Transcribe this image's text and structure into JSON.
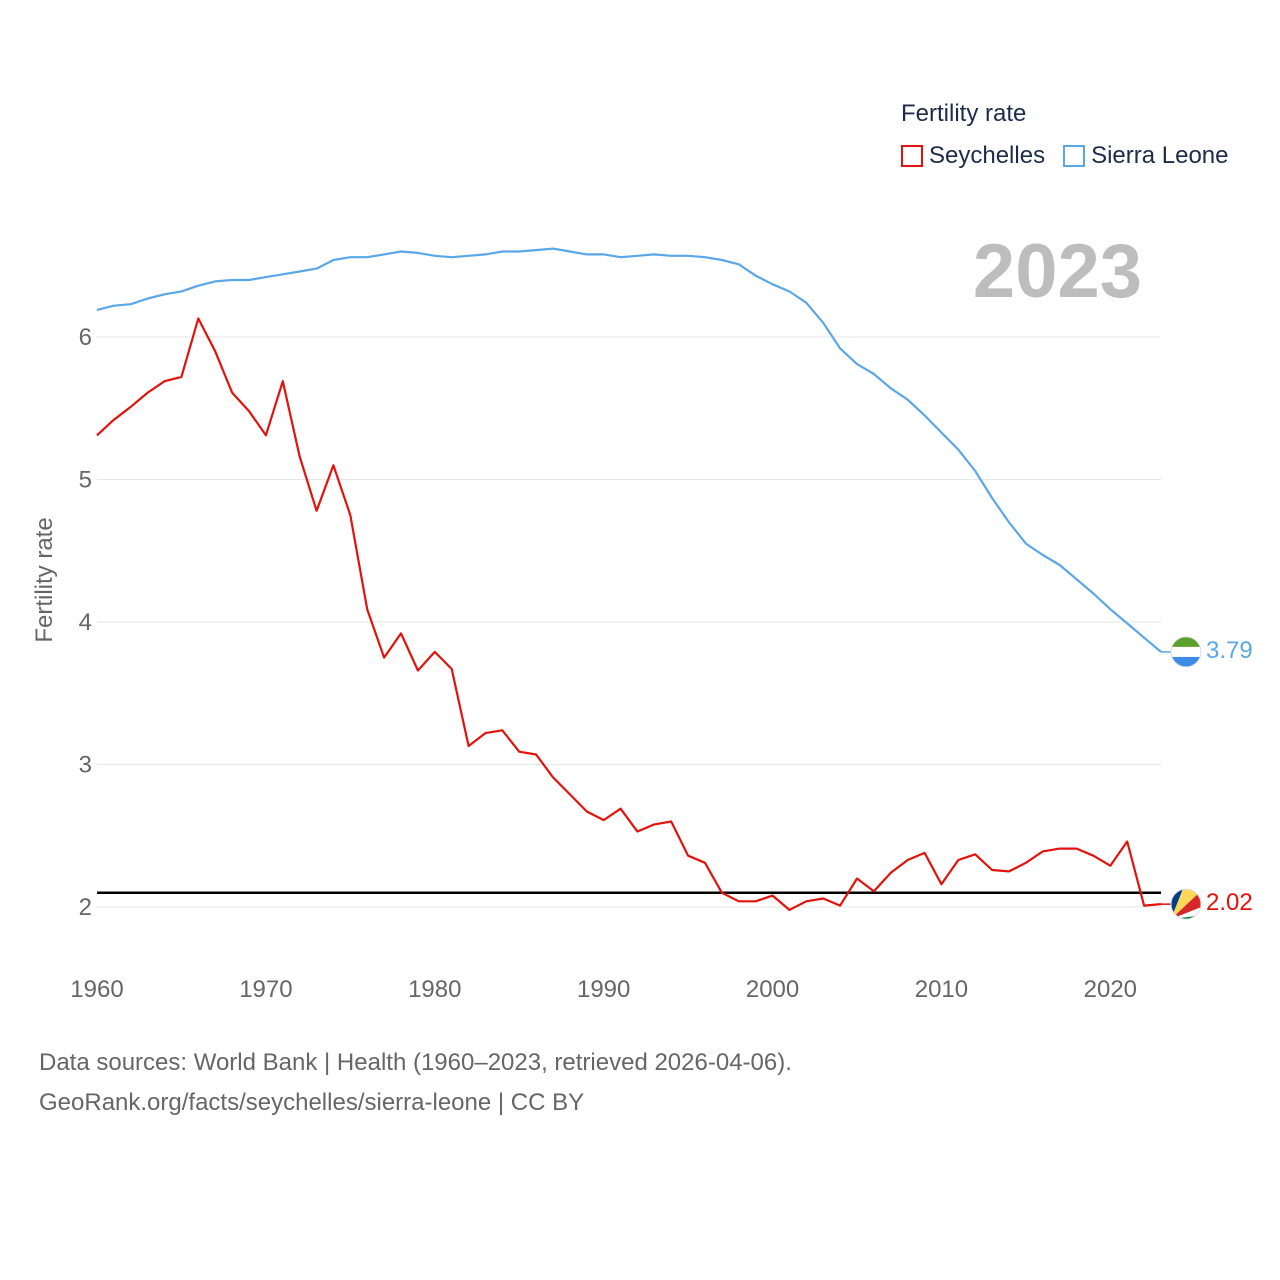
{
  "legend": {
    "title": "Fertility rate"
  },
  "year_label": "2023",
  "footer": {
    "line1": "Data sources: World Bank | Health (1960–2023, retrieved 2026-04-06).",
    "line2": "GeoRank.org/facts/seychelles/sierra-leone | CC BY"
  },
  "chart_data": {
    "type": "line",
    "title": "Fertility rate",
    "xlabel": "",
    "ylabel": "Fertility rate",
    "xlim": [
      1960,
      2023
    ],
    "ylim": [
      1.8,
      6.9
    ],
    "xticks": [
      1960,
      1970,
      1980,
      1990,
      2000,
      2010,
      2020
    ],
    "yticks": [
      2,
      3,
      4,
      5,
      6
    ],
    "reference_line": {
      "y": 2.1,
      "color": "#000000"
    },
    "x": [
      1960,
      1961,
      1962,
      1963,
      1964,
      1965,
      1966,
      1967,
      1968,
      1969,
      1970,
      1971,
      1972,
      1973,
      1974,
      1975,
      1976,
      1977,
      1978,
      1979,
      1980,
      1981,
      1982,
      1983,
      1984,
      1985,
      1986,
      1987,
      1988,
      1989,
      1990,
      1991,
      1992,
      1993,
      1994,
      1995,
      1996,
      1997,
      1998,
      1999,
      2000,
      2001,
      2002,
      2003,
      2004,
      2005,
      2006,
      2007,
      2008,
      2009,
      2010,
      2011,
      2012,
      2013,
      2014,
      2015,
      2016,
      2017,
      2018,
      2019,
      2020,
      2021,
      2022,
      2023
    ],
    "series": [
      {
        "name": "Seychelles",
        "color": "#e3120b",
        "end_label": "2.02",
        "values": [
          5.31,
          5.42,
          5.51,
          5.61,
          5.69,
          5.72,
          6.13,
          5.9,
          5.61,
          5.48,
          5.31,
          5.69,
          5.16,
          4.78,
          5.1,
          4.75,
          4.09,
          3.75,
          3.92,
          3.66,
          3.79,
          3.67,
          3.13,
          3.22,
          3.24,
          3.09,
          3.07,
          2.91,
          2.79,
          2.67,
          2.61,
          2.69,
          2.53,
          2.58,
          2.6,
          2.36,
          2.31,
          2.1,
          2.04,
          2.04,
          2.08,
          1.98,
          2.04,
          2.06,
          2.01,
          2.2,
          2.11,
          2.24,
          2.33,
          2.38,
          2.16,
          2.33,
          2.37,
          2.26,
          2.25,
          2.31,
          2.39,
          2.41,
          2.41,
          2.36,
          2.29,
          2.46,
          2.01,
          2.02
        ]
      },
      {
        "name": "Sierra Leone",
        "color": "#5aa7e8",
        "end_label": "3.79",
        "values": [
          6.19,
          6.22,
          6.23,
          6.27,
          6.3,
          6.32,
          6.36,
          6.39,
          6.4,
          6.4,
          6.42,
          6.44,
          6.46,
          6.48,
          6.54,
          6.56,
          6.56,
          6.58,
          6.6,
          6.59,
          6.57,
          6.56,
          6.57,
          6.58,
          6.6,
          6.6,
          6.61,
          6.62,
          6.6,
          6.58,
          6.58,
          6.56,
          6.57,
          6.58,
          6.57,
          6.57,
          6.56,
          6.54,
          6.51,
          6.43,
          6.37,
          6.32,
          6.24,
          6.1,
          5.92,
          5.81,
          5.74,
          5.64,
          5.56,
          5.45,
          5.33,
          5.21,
          5.06,
          4.87,
          4.7,
          4.55,
          4.47,
          4.4,
          4.3,
          4.2,
          4.09,
          3.99,
          3.89,
          3.79
        ]
      }
    ]
  }
}
